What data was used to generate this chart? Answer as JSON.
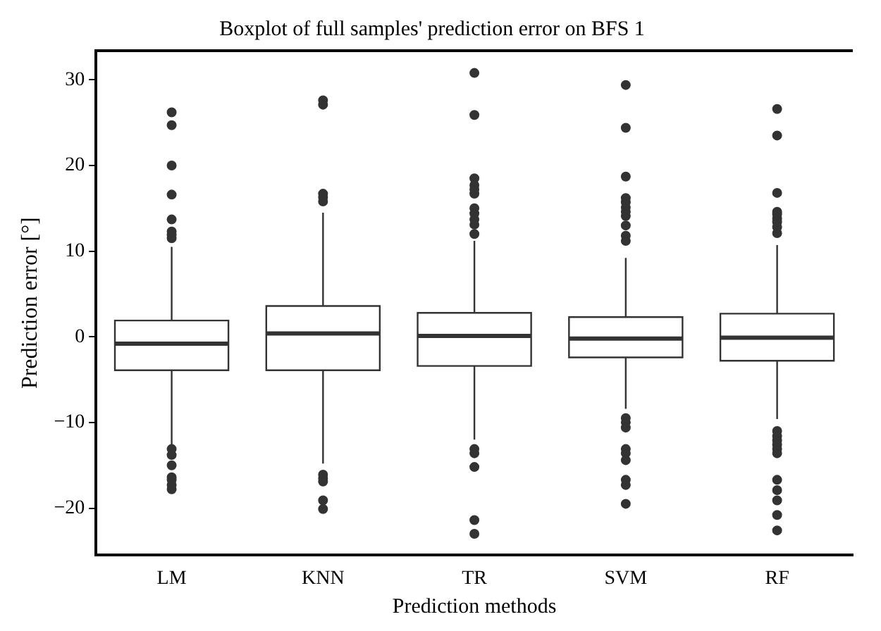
{
  "chart_data": {
    "type": "box",
    "title": "Boxplot of full samples' prediction error on BFS 1",
    "xlabel": "Prediction methods",
    "ylabel": "Prediction error [°]",
    "categories": [
      "LM",
      "KNN",
      "TR",
      "SVM",
      "RF"
    ],
    "color": "#333333",
    "boxes": [
      {
        "low": -12.6,
        "q1": -3.9,
        "median": -0.8,
        "q3": 1.9,
        "high": 10.5,
        "outliers": [
          26.2,
          24.7,
          20.0,
          16.6,
          13.7,
          12.3,
          11.9,
          11.5,
          -13.1,
          -13.8,
          -15.0,
          -16.4,
          -16.7,
          -17.3,
          -17.8
        ]
      },
      {
        "low": -14.8,
        "q1": -3.9,
        "median": 0.4,
        "q3": 3.6,
        "high": 14.5,
        "outliers": [
          27.6,
          27.1,
          16.7,
          16.3,
          15.8,
          -16.1,
          -16.5,
          -16.9,
          -19.1,
          -20.1
        ]
      },
      {
        "low": -12.0,
        "q1": -3.4,
        "median": 0.1,
        "q3": 2.8,
        "high": 11.2,
        "outliers": [
          30.8,
          25.9,
          18.5,
          17.7,
          17.2,
          16.7,
          15.0,
          14.4,
          13.7,
          13.1,
          12.0,
          -13.1,
          -13.6,
          -15.2,
          -21.4,
          -23.0
        ]
      },
      {
        "low": -8.4,
        "q1": -2.4,
        "median": -0.2,
        "q3": 2.3,
        "high": 9.2,
        "outliers": [
          29.4,
          24.4,
          18.7,
          16.2,
          15.7,
          15.1,
          14.6,
          14.1,
          13.0,
          11.8,
          11.2,
          -9.5,
          -10.0,
          -10.6,
          -13.1,
          -13.6,
          -14.4,
          -16.7,
          -17.3,
          -19.5
        ]
      },
      {
        "low": -9.6,
        "q1": -2.8,
        "median": -0.1,
        "q3": 2.7,
        "high": 10.7,
        "outliers": [
          26.6,
          23.5,
          16.8,
          14.6,
          14.3,
          13.8,
          13.4,
          12.8,
          12.1,
          -11.0,
          -11.6,
          -12.1,
          -12.6,
          -13.1,
          -13.6,
          -16.7,
          -17.9,
          -19.1,
          -20.8,
          -22.6
        ]
      }
    ],
    "ylim": [
      -25.5,
      33.4
    ],
    "yticks": [
      {
        "value": -20,
        "label": "−20"
      },
      {
        "value": -10,
        "label": "−10"
      },
      0,
      10,
      20,
      30
    ],
    "grid": false,
    "legend": false
  }
}
